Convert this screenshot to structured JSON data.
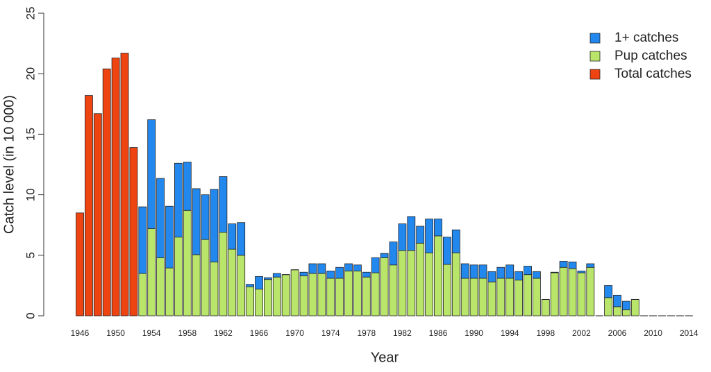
{
  "chart_data": {
    "type": "stacked_bar",
    "x_label": "Year",
    "y_label": "Catch level (in 10 000)",
    "categories": [
      "1946",
      null,
      null,
      null,
      "1950",
      null,
      null,
      null,
      "1954",
      null,
      null,
      null,
      "1958",
      null,
      null,
      null,
      "1962",
      null,
      null,
      null,
      "1966",
      null,
      null,
      null,
      "1970",
      null,
      null,
      null,
      "1974",
      null,
      null,
      null,
      "1978",
      null,
      null,
      null,
      "1982",
      null,
      null,
      null,
      "1986",
      null,
      null,
      null,
      "1990",
      null,
      null,
      null,
      "1994",
      null,
      null,
      null,
      "1998",
      null,
      null,
      null,
      "2002",
      null,
      null,
      null,
      "2006",
      null,
      null,
      null,
      "2010",
      null,
      null,
      null,
      "2014"
    ],
    "series": [
      {
        "name": "1+ catches",
        "color": "#2288ee",
        "values": [
          null,
          null,
          null,
          null,
          null,
          null,
          null,
          5.5,
          9.0,
          6.55,
          5.1,
          6.1,
          4.0,
          5.45,
          3.7,
          6.0,
          4.6,
          2.1,
          2.7,
          0.2,
          1.05,
          0.15,
          0.3,
          0,
          0,
          0.3,
          0.8,
          0.8,
          0.6,
          0.9,
          0.6,
          0.5,
          0.4,
          1.25,
          0.35,
          1.9,
          2.2,
          2.8,
          1.4,
          2.8,
          1.4,
          2.25,
          1.9,
          1.2,
          1.1,
          1.1,
          0.85,
          0.9,
          1.1,
          0.7,
          0.7,
          0.55,
          0,
          0.05,
          0.5,
          0.55,
          0.15,
          0.3,
          0,
          1.0,
          0.95,
          0.7,
          0,
          0,
          0,
          0,
          0,
          0,
          0
        ]
      },
      {
        "name": "Pup catches",
        "color": "#b9e56b",
        "values": [
          null,
          null,
          null,
          null,
          null,
          null,
          null,
          3.5,
          7.2,
          4.8,
          3.95,
          6.5,
          8.7,
          5.05,
          6.3,
          4.45,
          6.9,
          5.5,
          5.0,
          2.4,
          2.2,
          3.0,
          3.2,
          3.4,
          3.8,
          3.3,
          3.5,
          3.5,
          3.1,
          3.1,
          3.7,
          3.7,
          3.2,
          3.55,
          4.8,
          4.2,
          5.4,
          5.4,
          6.0,
          5.2,
          6.6,
          4.25,
          5.2,
          3.1,
          3.1,
          3.1,
          2.8,
          3.1,
          3.1,
          2.95,
          3.4,
          3.1,
          1.35,
          3.55,
          4.0,
          3.9,
          3.55,
          4.0,
          0,
          1.5,
          0.75,
          0.5,
          1.35,
          0,
          0,
          0,
          0,
          0,
          0
        ]
      },
      {
        "name": "Total catches",
        "color": "#ee4411",
        "values": [
          8.5,
          18.2,
          16.7,
          20.4,
          21.3,
          21.7,
          13.9,
          null,
          null,
          null,
          null,
          null,
          null,
          null,
          null,
          null,
          null,
          null,
          null,
          null,
          null,
          null,
          null,
          null,
          null,
          null,
          null,
          null,
          null,
          null,
          null,
          null,
          null,
          null,
          null,
          null,
          null,
          null,
          null,
          null,
          null,
          null,
          null,
          null,
          null,
          null,
          null,
          null,
          null,
          null,
          null,
          null,
          null,
          null,
          null,
          null,
          null,
          null,
          null,
          null,
          null,
          null,
          null,
          null,
          null,
          null,
          null,
          null,
          null
        ]
      }
    ],
    "ylim": [
      0,
      25
    ],
    "yticks": [
      0,
      5,
      10,
      15,
      20,
      25
    ],
    "grid": false,
    "legend": "top-right"
  }
}
